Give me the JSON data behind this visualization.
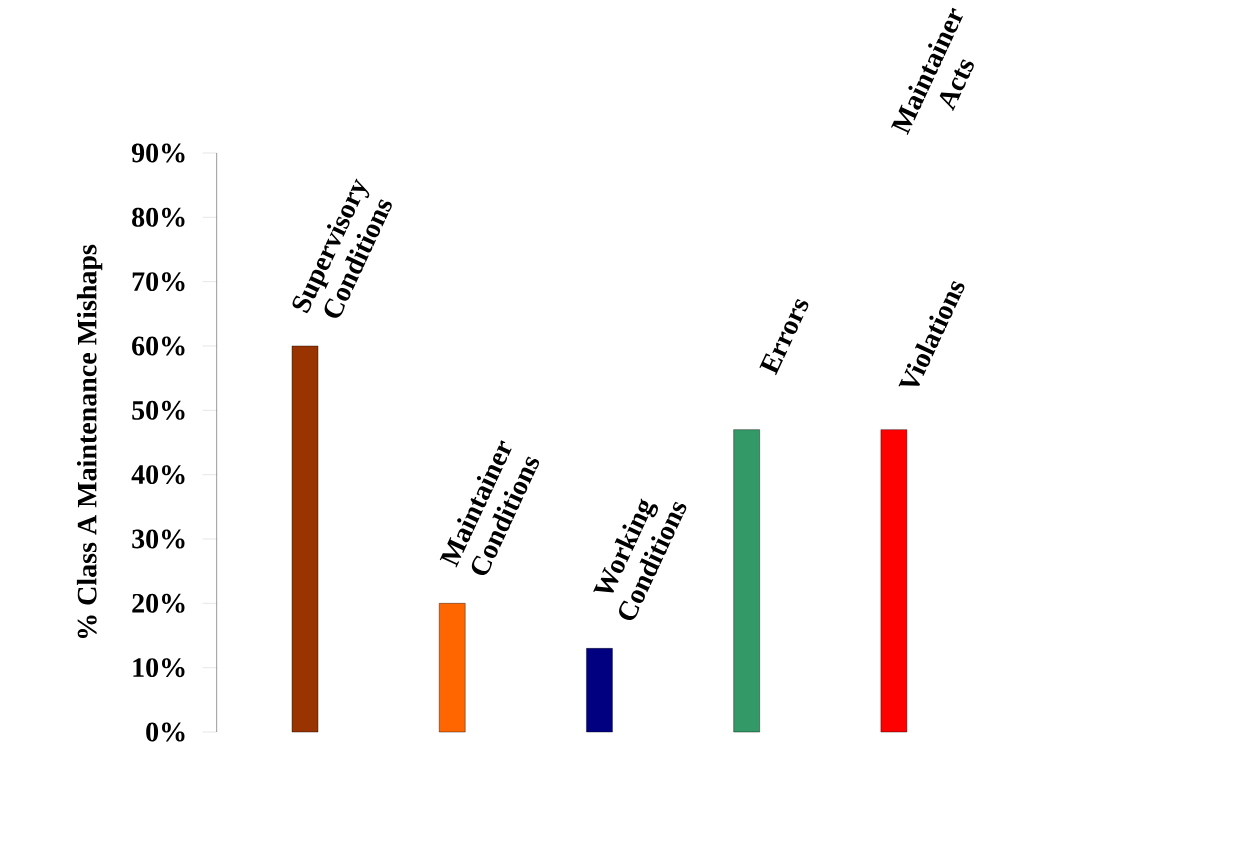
{
  "chart_data": {
    "type": "bar",
    "ylabel": "% Class A Maintenance Mishaps",
    "categories": [
      "Supervisory Conditions",
      "Maintainer Conditions",
      "Working Conditions",
      "Errors",
      "Violations"
    ],
    "values": [
      60,
      20,
      13,
      47,
      47
    ],
    "colors": [
      "#993300",
      "#ff6600",
      "#000080",
      "#339966",
      "#ff0000"
    ],
    "ylim": [
      0,
      90
    ],
    "yticks": [
      {
        "value": 0,
        "label": "0%"
      },
      {
        "value": 10,
        "label": "10%"
      },
      {
        "value": 20,
        "label": "20%"
      },
      {
        "value": 30,
        "label": "30%"
      },
      {
        "value": 40,
        "label": "40%"
      },
      {
        "value": 50,
        "label": "50%"
      },
      {
        "value": 60,
        "label": "60%"
      },
      {
        "value": 70,
        "label": "70%"
      },
      {
        "value": 80,
        "label": "80%"
      },
      {
        "value": 90,
        "label": "90%"
      }
    ],
    "annotations": [
      "Maintainer Acts"
    ],
    "grid": false
  }
}
